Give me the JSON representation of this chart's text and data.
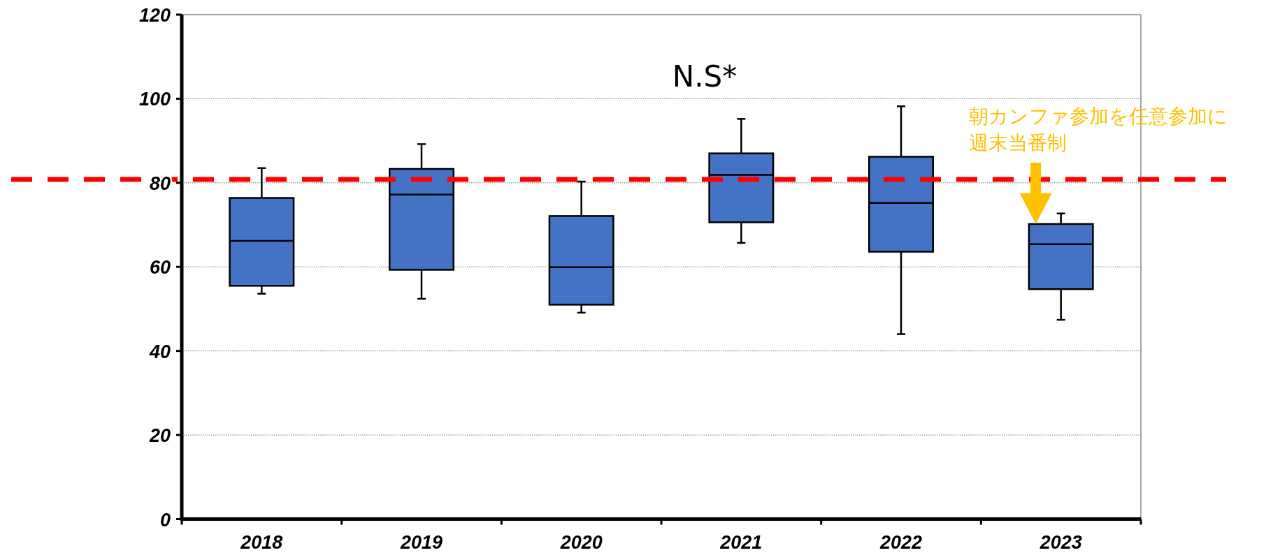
{
  "chart_data": {
    "type": "box",
    "categories": [
      "2018",
      "2019",
      "2020",
      "2021",
      "2022",
      "2023"
    ],
    "series": [
      {
        "color": "#4472c4",
        "boxes": [
          {
            "low": 53.6,
            "q1": 55.5,
            "median": 66.2,
            "q3": 76.4,
            "high": 83.5
          },
          {
            "low": 52.4,
            "q1": 59.3,
            "median": 77.2,
            "q3": 83.3,
            "high": 89.2
          },
          {
            "low": 49.1,
            "q1": 51.0,
            "median": 59.9,
            "q3": 72.1,
            "high": 80.3
          },
          {
            "low": 65.7,
            "q1": 70.6,
            "median": 81.9,
            "q3": 87.0,
            "high": 95.2
          },
          {
            "low": 44.0,
            "q1": 63.6,
            "median": 75.2,
            "q3": 86.2,
            "high": 98.2
          },
          {
            "low": 47.4,
            "q1": 54.7,
            "median": 65.4,
            "q3": 70.2,
            "high": 72.7
          }
        ]
      }
    ],
    "ylim": [
      0,
      120
    ],
    "yticks": [
      0,
      20,
      40,
      60,
      80,
      100,
      120
    ],
    "grid": "y",
    "ref_lines": [
      {
        "axis": "y",
        "value": 80.8,
        "color": "#ff0000",
        "line_style": "dashed"
      }
    ],
    "annotations": [
      "N.S*",
      "朝カンファ参加を任意参加に",
      "週末当番制"
    ]
  }
}
